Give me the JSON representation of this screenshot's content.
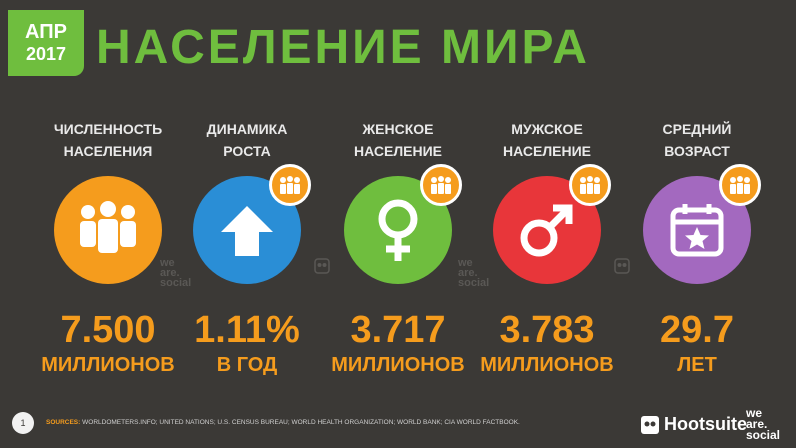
{
  "badge": {
    "month": "АПР",
    "year": "2017"
  },
  "title": "НАСЕЛЕНИЕ МИРА",
  "stats": [
    {
      "label": "ЧИСЛЕННОСТЬ\nНАСЕЛЕНИЯ",
      "value": "7.500",
      "unit": "МИЛЛИОНОВ",
      "icon": "people-icon",
      "color": "#f59c1d"
    },
    {
      "label": "ДИНАМИКА\nРОСТА",
      "value": "1.11%",
      "unit": "В ГОД",
      "icon": "arrow-up-icon",
      "color": "#2a8ed6"
    },
    {
      "label": "ЖЕНСКОЕ\nНАСЕЛЕНИЕ",
      "value": "3.717",
      "unit": "МИЛЛИОНОВ",
      "icon": "female-symbol-icon",
      "color": "#6fbe3e"
    },
    {
      "label": "МУЖСКОЕ\nНАСЕЛЕНИЕ",
      "value": "3.783",
      "unit": "МИЛЛИОНОВ",
      "icon": "male-symbol-icon",
      "color": "#e8363a"
    },
    {
      "label": "СРЕДНИЙ\nВОЗРАСТ",
      "value": "29.7",
      "unit": "ЛЕТ",
      "icon": "calendar-star-icon",
      "color": "#a369bf"
    }
  ],
  "footer": {
    "page": "1",
    "sources_label": "SOURCES:",
    "sources": "WORLDOMETERS.INFO; UNITED NATIONS; U.S. CENSUS BUREAU; WORLD HEALTH ORGANIZATION; WORLD BANK; CIA WORLD FACTBOOK.",
    "hootsuite": "Hootsuite",
    "wearesocial": [
      "we",
      "are.",
      "social"
    ]
  },
  "watermark": [
    "we",
    "are.",
    "social"
  ]
}
